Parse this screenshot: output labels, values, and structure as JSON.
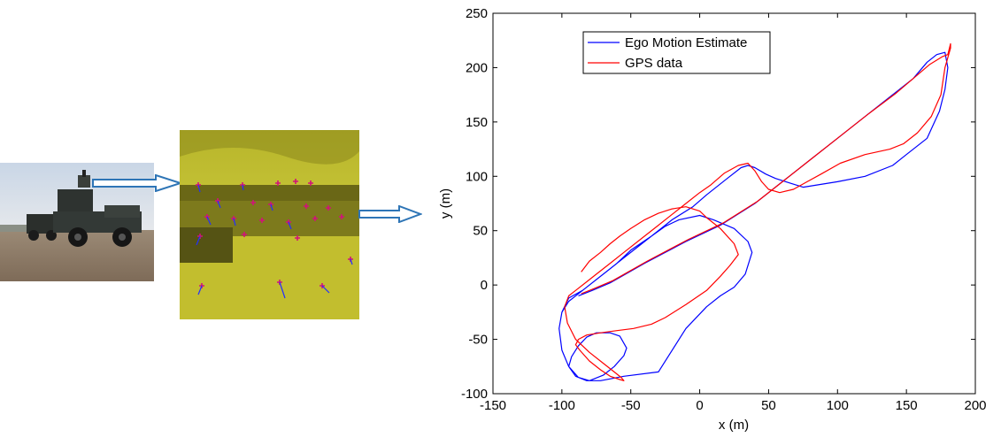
{
  "chart_data": {
    "type": "line",
    "title": "",
    "xlabel": "x (m)",
    "ylabel": "y (m)",
    "xlim": [
      -150,
      200
    ],
    "ylim": [
      -100,
      250
    ],
    "xticks": [
      -150,
      -100,
      -50,
      0,
      50,
      100,
      150,
      200
    ],
    "yticks": [
      -100,
      -50,
      0,
      50,
      100,
      150,
      200,
      250
    ],
    "grid": false,
    "legend_position": "top-left",
    "series": [
      {
        "name": "Ego Motion Estimate",
        "color": "#0000ff",
        "x": [
          -88,
          -78,
          -65,
          -40,
          -10,
          15,
          40,
          60,
          80,
          100,
          120,
          140,
          155,
          165,
          172,
          178,
          180,
          178,
          174,
          165,
          150,
          140,
          120,
          100,
          85,
          75,
          65,
          55,
          48,
          40,
          35,
          30,
          20,
          5,
          -5,
          -20,
          -35,
          -50,
          -60,
          -70,
          -78,
          -85,
          -95,
          -100,
          -102,
          -100,
          -95,
          -88,
          -80,
          -70,
          -62,
          -55,
          -53,
          -58,
          -65,
          -75,
          -82,
          -88,
          -93,
          -95,
          -90,
          -82,
          -72,
          -55,
          -30,
          -10,
          5,
          15,
          25,
          33,
          38,
          35,
          25,
          10,
          0,
          -15,
          -25,
          -35,
          -45,
          -55,
          -65,
          -75,
          -85,
          -95,
          -100
        ],
        "y": [
          -10,
          -5,
          2,
          20,
          40,
          55,
          75,
          95,
          115,
          135,
          155,
          175,
          190,
          205,
          212,
          214,
          200,
          180,
          160,
          135,
          120,
          110,
          100,
          95,
          92,
          90,
          94,
          98,
          102,
          108,
          110,
          108,
          98,
          83,
          72,
          60,
          45,
          32,
          20,
          10,
          2,
          -5,
          -12,
          -25,
          -40,
          -60,
          -75,
          -85,
          -88,
          -83,
          -75,
          -65,
          -58,
          -47,
          -44,
          -44,
          -48,
          -56,
          -66,
          -75,
          -84,
          -88,
          -88,
          -84,
          -80,
          -40,
          -20,
          -10,
          -2,
          10,
          30,
          40,
          52,
          60,
          64,
          60,
          54,
          45,
          35,
          25,
          15,
          5,
          -5,
          -15,
          -25
        ]
      },
      {
        "name": "GPS data",
        "color": "#ff0000",
        "x": [
          -86,
          -76,
          -63,
          -38,
          -8,
          17,
          42,
          62,
          82,
          102,
          122,
          142,
          155,
          167,
          176,
          180,
          182,
          182,
          178,
          175,
          168,
          158,
          148,
          138,
          120,
          102,
          88,
          78,
          68,
          58,
          50,
          45,
          40,
          35,
          28,
          18,
          8,
          0,
          -10,
          -20,
          -30,
          -40,
          -55,
          -65,
          -75,
          -82,
          -90,
          -95,
          -98,
          -96,
          -90,
          -80,
          -70,
          -62,
          -57,
          -55,
          -58,
          -65,
          -72,
          -80,
          -87,
          -90,
          -88,
          -82,
          -72,
          -60,
          -48,
          -35,
          -25,
          -10,
          5,
          15,
          22,
          28,
          25,
          15,
          5,
          0,
          -10,
          -20,
          -30,
          -40,
          -50,
          -58,
          -65,
          -72,
          -80,
          -86
        ],
        "y": [
          -8,
          -3,
          4,
          22,
          42,
          57,
          77,
          97,
          117,
          137,
          157,
          176,
          190,
          203,
          210,
          212,
          222,
          218,
          200,
          175,
          155,
          140,
          130,
          125,
          120,
          112,
          102,
          95,
          88,
          85,
          88,
          95,
          105,
          112,
          110,
          103,
          92,
          85,
          75,
          65,
          55,
          45,
          30,
          20,
          10,
          3,
          -5,
          -10,
          -20,
          -35,
          -50,
          -62,
          -72,
          -80,
          -85,
          -88,
          -87,
          -84,
          -78,
          -70,
          -60,
          -55,
          -50,
          -46,
          -44,
          -42,
          -40,
          -36,
          -30,
          -18,
          -5,
          8,
          18,
          28,
          38,
          52,
          62,
          68,
          72,
          70,
          66,
          60,
          52,
          45,
          38,
          30,
          22,
          12
        ]
      }
    ]
  },
  "images": {
    "photo": "vehicle-photo",
    "processed": "feature-tracking-image"
  }
}
